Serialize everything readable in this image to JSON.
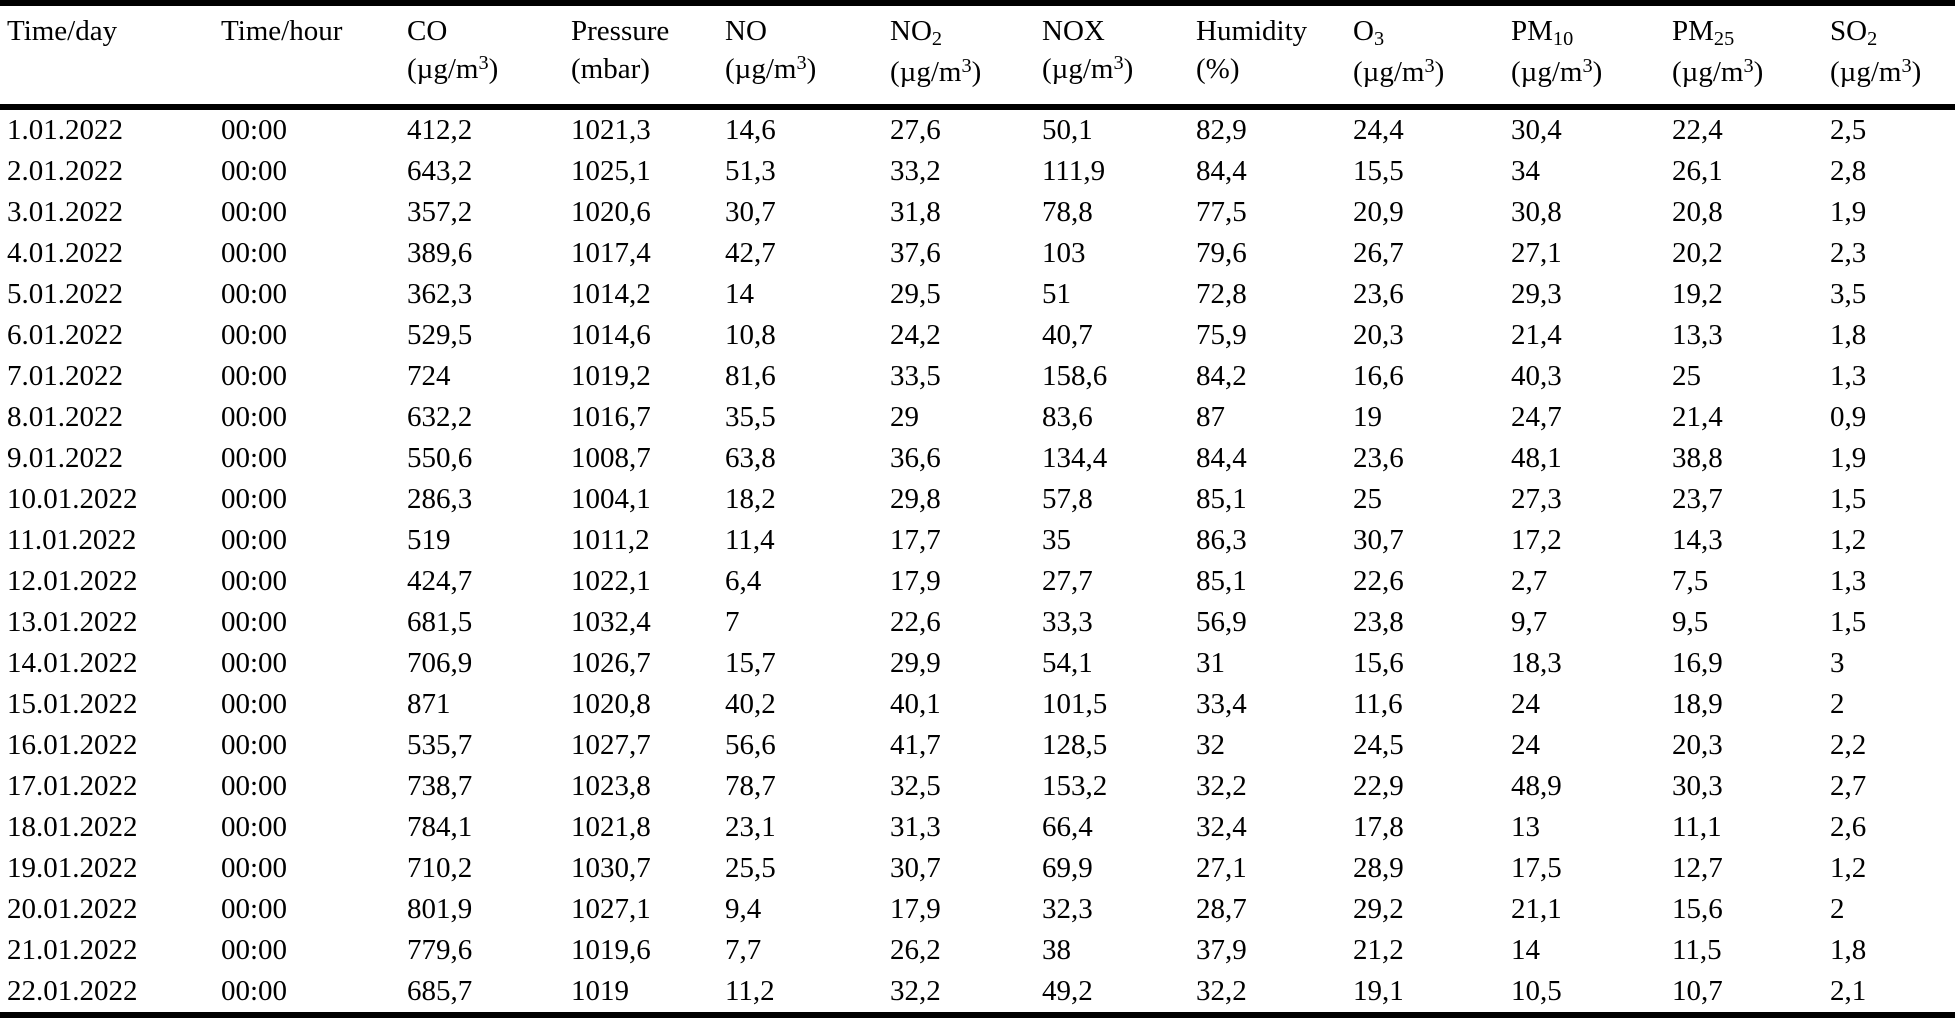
{
  "table": {
    "columns": [
      {
        "id": "time-day",
        "label": "Time/day",
        "sub": "",
        "unit_pre": "",
        "unit_sup": "",
        "unit_post": ""
      },
      {
        "id": "time-hour",
        "label": "Time/hour",
        "sub": "",
        "unit_pre": "",
        "unit_sup": "",
        "unit_post": ""
      },
      {
        "id": "co",
        "label": "CO",
        "sub": "",
        "unit_pre": "(µg/m",
        "unit_sup": "3",
        "unit_post": ")"
      },
      {
        "id": "pressure",
        "label": "Pressure",
        "sub": "",
        "unit_pre": "(mbar)",
        "unit_sup": "",
        "unit_post": ""
      },
      {
        "id": "no",
        "label": "NO",
        "sub": "",
        "unit_pre": "(µg/m",
        "unit_sup": "3",
        "unit_post": ")"
      },
      {
        "id": "no2",
        "label": "NO",
        "sub": "2",
        "unit_pre": "(µg/m",
        "unit_sup": "3",
        "unit_post": ")"
      },
      {
        "id": "nox",
        "label": "NOX",
        "sub": "",
        "unit_pre": "(µg/m",
        "unit_sup": "3",
        "unit_post": ")"
      },
      {
        "id": "humidity",
        "label": "Humidity",
        "sub": "",
        "unit_pre": "(%)",
        "unit_sup": "",
        "unit_post": ""
      },
      {
        "id": "o3",
        "label": "O",
        "sub": "3",
        "unit_pre": "(µg/m",
        "unit_sup": "3",
        "unit_post": ")"
      },
      {
        "id": "pm10",
        "label": "PM",
        "sub": "10",
        "unit_pre": "(µg/m",
        "unit_sup": "3",
        "unit_post": ")"
      },
      {
        "id": "pm25",
        "label": "PM",
        "sub": "25",
        "unit_pre": "(µg/m",
        "unit_sup": "3",
        "unit_post": ")"
      },
      {
        "id": "so2",
        "label": "SO",
        "sub": "2",
        "unit_pre": "(µg/m",
        "unit_sup": "3",
        "unit_post": ")"
      }
    ],
    "rows": [
      [
        "1.01.2022",
        "00:00",
        "412,2",
        "1021,3",
        "14,6",
        "27,6",
        "50,1",
        "82,9",
        "24,4",
        "30,4",
        "22,4",
        "2,5"
      ],
      [
        "2.01.2022",
        "00:00",
        "643,2",
        "1025,1",
        "51,3",
        "33,2",
        "111,9",
        "84,4",
        "15,5",
        "34",
        "26,1",
        "2,8"
      ],
      [
        "3.01.2022",
        "00:00",
        "357,2",
        "1020,6",
        "30,7",
        "31,8",
        "78,8",
        "77,5",
        "20,9",
        "30,8",
        "20,8",
        "1,9"
      ],
      [
        "4.01.2022",
        "00:00",
        "389,6",
        "1017,4",
        "42,7",
        "37,6",
        "103",
        "79,6",
        "26,7",
        "27,1",
        "20,2",
        "2,3"
      ],
      [
        "5.01.2022",
        "00:00",
        "362,3",
        "1014,2",
        "14",
        "29,5",
        "51",
        "72,8",
        "23,6",
        "29,3",
        "19,2",
        "3,5"
      ],
      [
        "6.01.2022",
        "00:00",
        "529,5",
        "1014,6",
        "10,8",
        "24,2",
        "40,7",
        "75,9",
        "20,3",
        "21,4",
        "13,3",
        "1,8"
      ],
      [
        "7.01.2022",
        "00:00",
        "724",
        "1019,2",
        "81,6",
        "33,5",
        "158,6",
        "84,2",
        "16,6",
        "40,3",
        "25",
        "1,3"
      ],
      [
        "8.01.2022",
        "00:00",
        "632,2",
        "1016,7",
        "35,5",
        "29",
        "83,6",
        "87",
        "19",
        "24,7",
        "21,4",
        "0,9"
      ],
      [
        "9.01.2022",
        "00:00",
        "550,6",
        "1008,7",
        "63,8",
        "36,6",
        "134,4",
        "84,4",
        "23,6",
        "48,1",
        "38,8",
        "1,9"
      ],
      [
        "10.01.2022",
        "00:00",
        "286,3",
        "1004,1",
        "18,2",
        "29,8",
        "57,8",
        "85,1",
        "25",
        "27,3",
        "23,7",
        "1,5"
      ],
      [
        "11.01.2022",
        "00:00",
        "519",
        "1011,2",
        "11,4",
        "17,7",
        "35",
        "86,3",
        "30,7",
        "17,2",
        "14,3",
        "1,2"
      ],
      [
        "12.01.2022",
        "00:00",
        "424,7",
        "1022,1",
        "6,4",
        "17,9",
        "27,7",
        "85,1",
        "22,6",
        "2,7",
        "7,5",
        "1,3"
      ],
      [
        "13.01.2022",
        "00:00",
        "681,5",
        "1032,4",
        "7",
        "22,6",
        "33,3",
        "56,9",
        "23,8",
        "9,7",
        "9,5",
        "1,5"
      ],
      [
        "14.01.2022",
        "00:00",
        "706,9",
        "1026,7",
        "15,7",
        "29,9",
        "54,1",
        "31",
        "15,6",
        "18,3",
        "16,9",
        "3"
      ],
      [
        "15.01.2022",
        "00:00",
        "871",
        "1020,8",
        "40,2",
        "40,1",
        "101,5",
        "33,4",
        "11,6",
        "24",
        "18,9",
        "2"
      ],
      [
        "16.01.2022",
        "00:00",
        "535,7",
        "1027,7",
        "56,6",
        "41,7",
        "128,5",
        "32",
        "24,5",
        "24",
        "20,3",
        "2,2"
      ],
      [
        "17.01.2022",
        "00:00",
        "738,7",
        "1023,8",
        "78,7",
        "32,5",
        "153,2",
        "32,2",
        "22,9",
        "48,9",
        "30,3",
        "2,7"
      ],
      [
        "18.01.2022",
        "00:00",
        "784,1",
        "1021,8",
        "23,1",
        "31,3",
        "66,4",
        "32,4",
        "17,8",
        "13",
        "11,1",
        "2,6"
      ],
      [
        "19.01.2022",
        "00:00",
        "710,2",
        "1030,7",
        "25,5",
        "30,7",
        "69,9",
        "27,1",
        "28,9",
        "17,5",
        "12,7",
        "1,2"
      ],
      [
        "20.01.2022",
        "00:00",
        "801,9",
        "1027,1",
        "9,4",
        "17,9",
        "32,3",
        "28,7",
        "29,2",
        "21,1",
        "15,6",
        "2"
      ],
      [
        "21.01.2022",
        "00:00",
        "779,6",
        "1019,6",
        "7,7",
        "26,2",
        "38",
        "37,9",
        "21,2",
        "14",
        "11,5",
        "1,8"
      ],
      [
        "22.01.2022",
        "00:00",
        "685,7",
        "1019",
        "11,2",
        "32,2",
        "49,2",
        "32,2",
        "19,1",
        "10,5",
        "10,7",
        "2,1"
      ]
    ]
  }
}
